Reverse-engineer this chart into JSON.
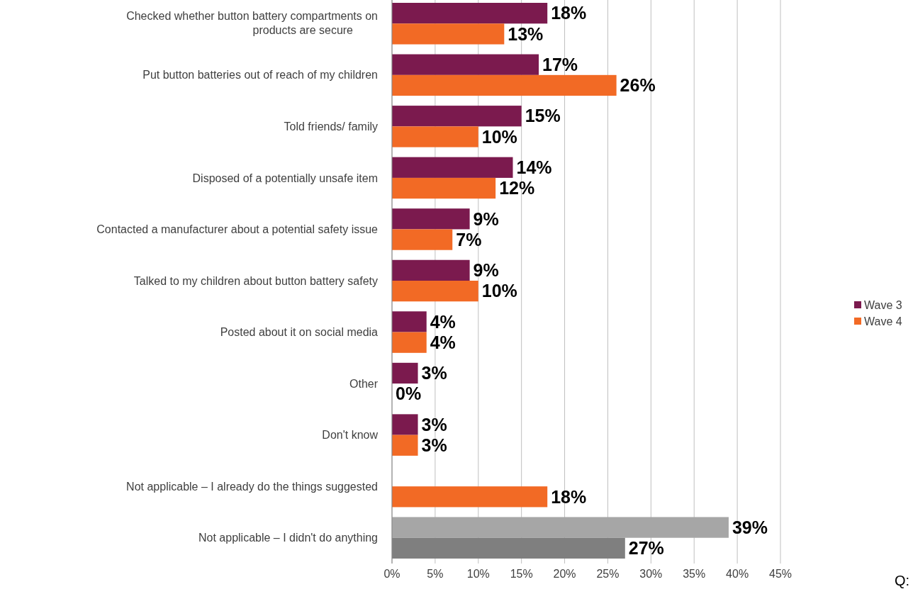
{
  "chart_data": {
    "type": "bar",
    "orientation": "horizontal",
    "categories": [
      "Checked whether button battery compartments on products are secure",
      "Put button batteries out of reach of my children",
      "Told friends/ family",
      "Disposed of a potentially unsafe item",
      "Contacted a manufacturer about a potential safety issue",
      "Talked to my children about button battery safety",
      "Posted about it on social media",
      "Other",
      "Don't know",
      "Not applicable – I already do the things suggested",
      "Not applicable – I didn't do anything"
    ],
    "series": [
      {
        "name": "Wave 3",
        "color": "#7b1a4e",
        "colors": [
          "#7b1a4e",
          "#7b1a4e",
          "#7b1a4e",
          "#7b1a4e",
          "#7b1a4e",
          "#7b1a4e",
          "#7b1a4e",
          "#7b1a4e",
          "#7b1a4e",
          null,
          "#a6a6a6"
        ],
        "values": [
          18,
          17,
          15,
          14,
          9,
          9,
          4,
          3,
          3,
          null,
          39
        ],
        "value_labels": [
          "18%",
          "17%",
          "15%",
          "14%",
          "9%",
          "9%",
          "4%",
          "3%",
          "3%",
          null,
          "39%"
        ]
      },
      {
        "name": "Wave 4",
        "color": "#f26a25",
        "colors": [
          "#f26a25",
          "#f26a25",
          "#f26a25",
          "#f26a25",
          "#f26a25",
          "#f26a25",
          "#f26a25",
          "#f26a25",
          "#f26a25",
          "#f26a25",
          "#7f7f7f"
        ],
        "values": [
          13,
          26,
          10,
          12,
          7,
          10,
          4,
          0,
          3,
          18,
          27
        ],
        "value_labels": [
          "13%",
          "26%",
          "10%",
          "12%",
          "7%",
          "10%",
          "4%",
          "0%",
          "3%",
          "18%",
          "27%"
        ]
      }
    ],
    "xlim": [
      0,
      45
    ],
    "xticks": [
      {
        "value": 0,
        "label": "0%"
      },
      {
        "value": 5,
        "label": "5%"
      },
      {
        "value": 10,
        "label": "10%"
      },
      {
        "value": 15,
        "label": "15%"
      },
      {
        "value": 20,
        "label": "20%"
      },
      {
        "value": 25,
        "label": "25%"
      },
      {
        "value": 30,
        "label": "30%"
      },
      {
        "value": 35,
        "label": "35%"
      },
      {
        "value": 40,
        "label": "40%"
      },
      {
        "value": 45,
        "label": "45%"
      }
    ],
    "grid": "x",
    "legend": "right",
    "annotations": [
      "Q:"
    ]
  }
}
